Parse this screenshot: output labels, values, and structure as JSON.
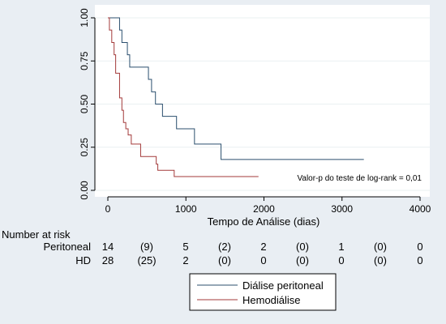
{
  "chart_data": {
    "type": "line",
    "subtype": "kaplan-meier",
    "title": "",
    "xlabel": "Tempo de Análise (dias)",
    "ylabel": "",
    "xlim": [
      0,
      4000
    ],
    "ylim": [
      0,
      1
    ],
    "x_ticks": [
      0,
      1000,
      2000,
      3000,
      4000
    ],
    "y_ticks": [
      0.0,
      0.25,
      0.5,
      0.75,
      1.0
    ],
    "y_tick_labels": [
      "0.00",
      "0.25",
      "0.50",
      "0.75",
      "1.00"
    ],
    "grid": "horizontal",
    "annotation": "Valor-p do teste de log-rank = 0,01",
    "legend_position": "bottom",
    "series": [
      {
        "name": "Diálise peritoneal",
        "color": "#2b4f6e",
        "steps": [
          [
            0,
            1.0
          ],
          [
            150,
            0.929
          ],
          [
            180,
            0.857
          ],
          [
            250,
            0.786
          ],
          [
            280,
            0.714
          ],
          [
            520,
            0.643
          ],
          [
            560,
            0.571
          ],
          [
            610,
            0.5
          ],
          [
            700,
            0.429
          ],
          [
            880,
            0.357
          ],
          [
            1110,
            0.268
          ],
          [
            1450,
            0.179
          ],
          [
            3280,
            0.179
          ]
        ]
      },
      {
        "name": "Hemodiálise",
        "color": "#a33a3a",
        "steps": [
          [
            0,
            1.0
          ],
          [
            20,
            0.929
          ],
          [
            50,
            0.857
          ],
          [
            80,
            0.786
          ],
          [
            100,
            0.679
          ],
          [
            150,
            0.536
          ],
          [
            180,
            0.464
          ],
          [
            200,
            0.393
          ],
          [
            230,
            0.357
          ],
          [
            260,
            0.321
          ],
          [
            300,
            0.268
          ],
          [
            420,
            0.196
          ],
          [
            620,
            0.152
          ],
          [
            640,
            0.116
          ],
          [
            850,
            0.08
          ],
          [
            1930,
            0.08
          ]
        ]
      }
    ]
  },
  "risk_table": {
    "title": "Number at risk",
    "rows": [
      {
        "label": "Peritoneal",
        "values": [
          "14",
          "(9)",
          "5",
          "(2)",
          "2",
          "(0)",
          "1",
          "(0)",
          "0"
        ]
      },
      {
        "label": "HD",
        "values": [
          "28",
          "(25)",
          "2",
          "(0)",
          "0",
          "(0)",
          "0",
          "(0)",
          "0"
        ]
      }
    ]
  }
}
